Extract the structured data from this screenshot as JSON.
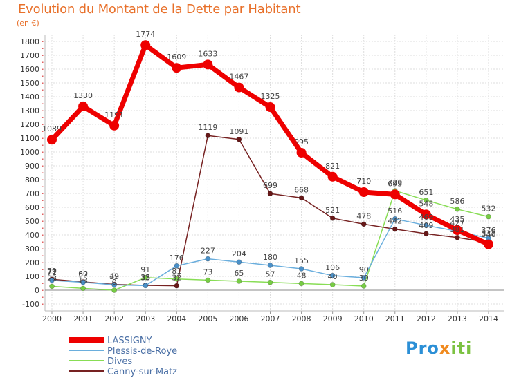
{
  "header": {
    "title": "Evolution du Montant de la Dette par Habitant",
    "subtitle": "(en €)"
  },
  "logo": {
    "text": "Proxiti",
    "colors": [
      "#2b8fd6",
      "#f08a1f",
      "#7cc242"
    ]
  },
  "chart_data": {
    "type": "line",
    "title": "Evolution du Montant de la Dette par Habitant",
    "ylabel": "(en €)",
    "xlabel": "",
    "x": [
      "2000",
      "2001",
      "2002",
      "2003",
      "2004",
      "2005",
      "2006",
      "2007",
      "2008",
      "2009",
      "2010",
      "2011",
      "2012",
      "2013",
      "2014"
    ],
    "ylim": [
      -100,
      1800
    ],
    "yticks": [
      -100,
      0,
      100,
      200,
      300,
      400,
      500,
      600,
      700,
      800,
      900,
      1000,
      1100,
      1200,
      1300,
      1400,
      1500,
      1600,
      1700,
      1800
    ],
    "grid": true,
    "legend_position": "bottom-left",
    "series": [
      {
        "name": "LASSIGNY",
        "color": "#ee0000",
        "values": [
          1089,
          1330,
          1191,
          1774,
          1609,
          1633,
          1467,
          1325,
          995,
          821,
          710,
          693,
          548,
          435,
          332
        ]
      },
      {
        "name": "Plessis-de-Roye",
        "color": "#5aa0d4",
        "values": [
          71,
          57,
          39,
          33,
          176,
          227,
          204,
          180,
          155,
          106,
          90,
          516,
          469,
          427,
          376
        ]
      },
      {
        "name": "Dives",
        "color": "#88dd55",
        "values": [
          28,
          13,
          0,
          91,
          81,
          73,
          65,
          57,
          48,
          40,
          30,
          720,
          651,
          586,
          532
        ]
      },
      {
        "name": "Canny-sur-Matz",
        "color": "#772222",
        "values": [
          79,
          60,
          42,
          35,
          32,
          1119,
          1091,
          699,
          668,
          521,
          478,
          442,
          409,
          381,
          346
        ]
      }
    ]
  }
}
